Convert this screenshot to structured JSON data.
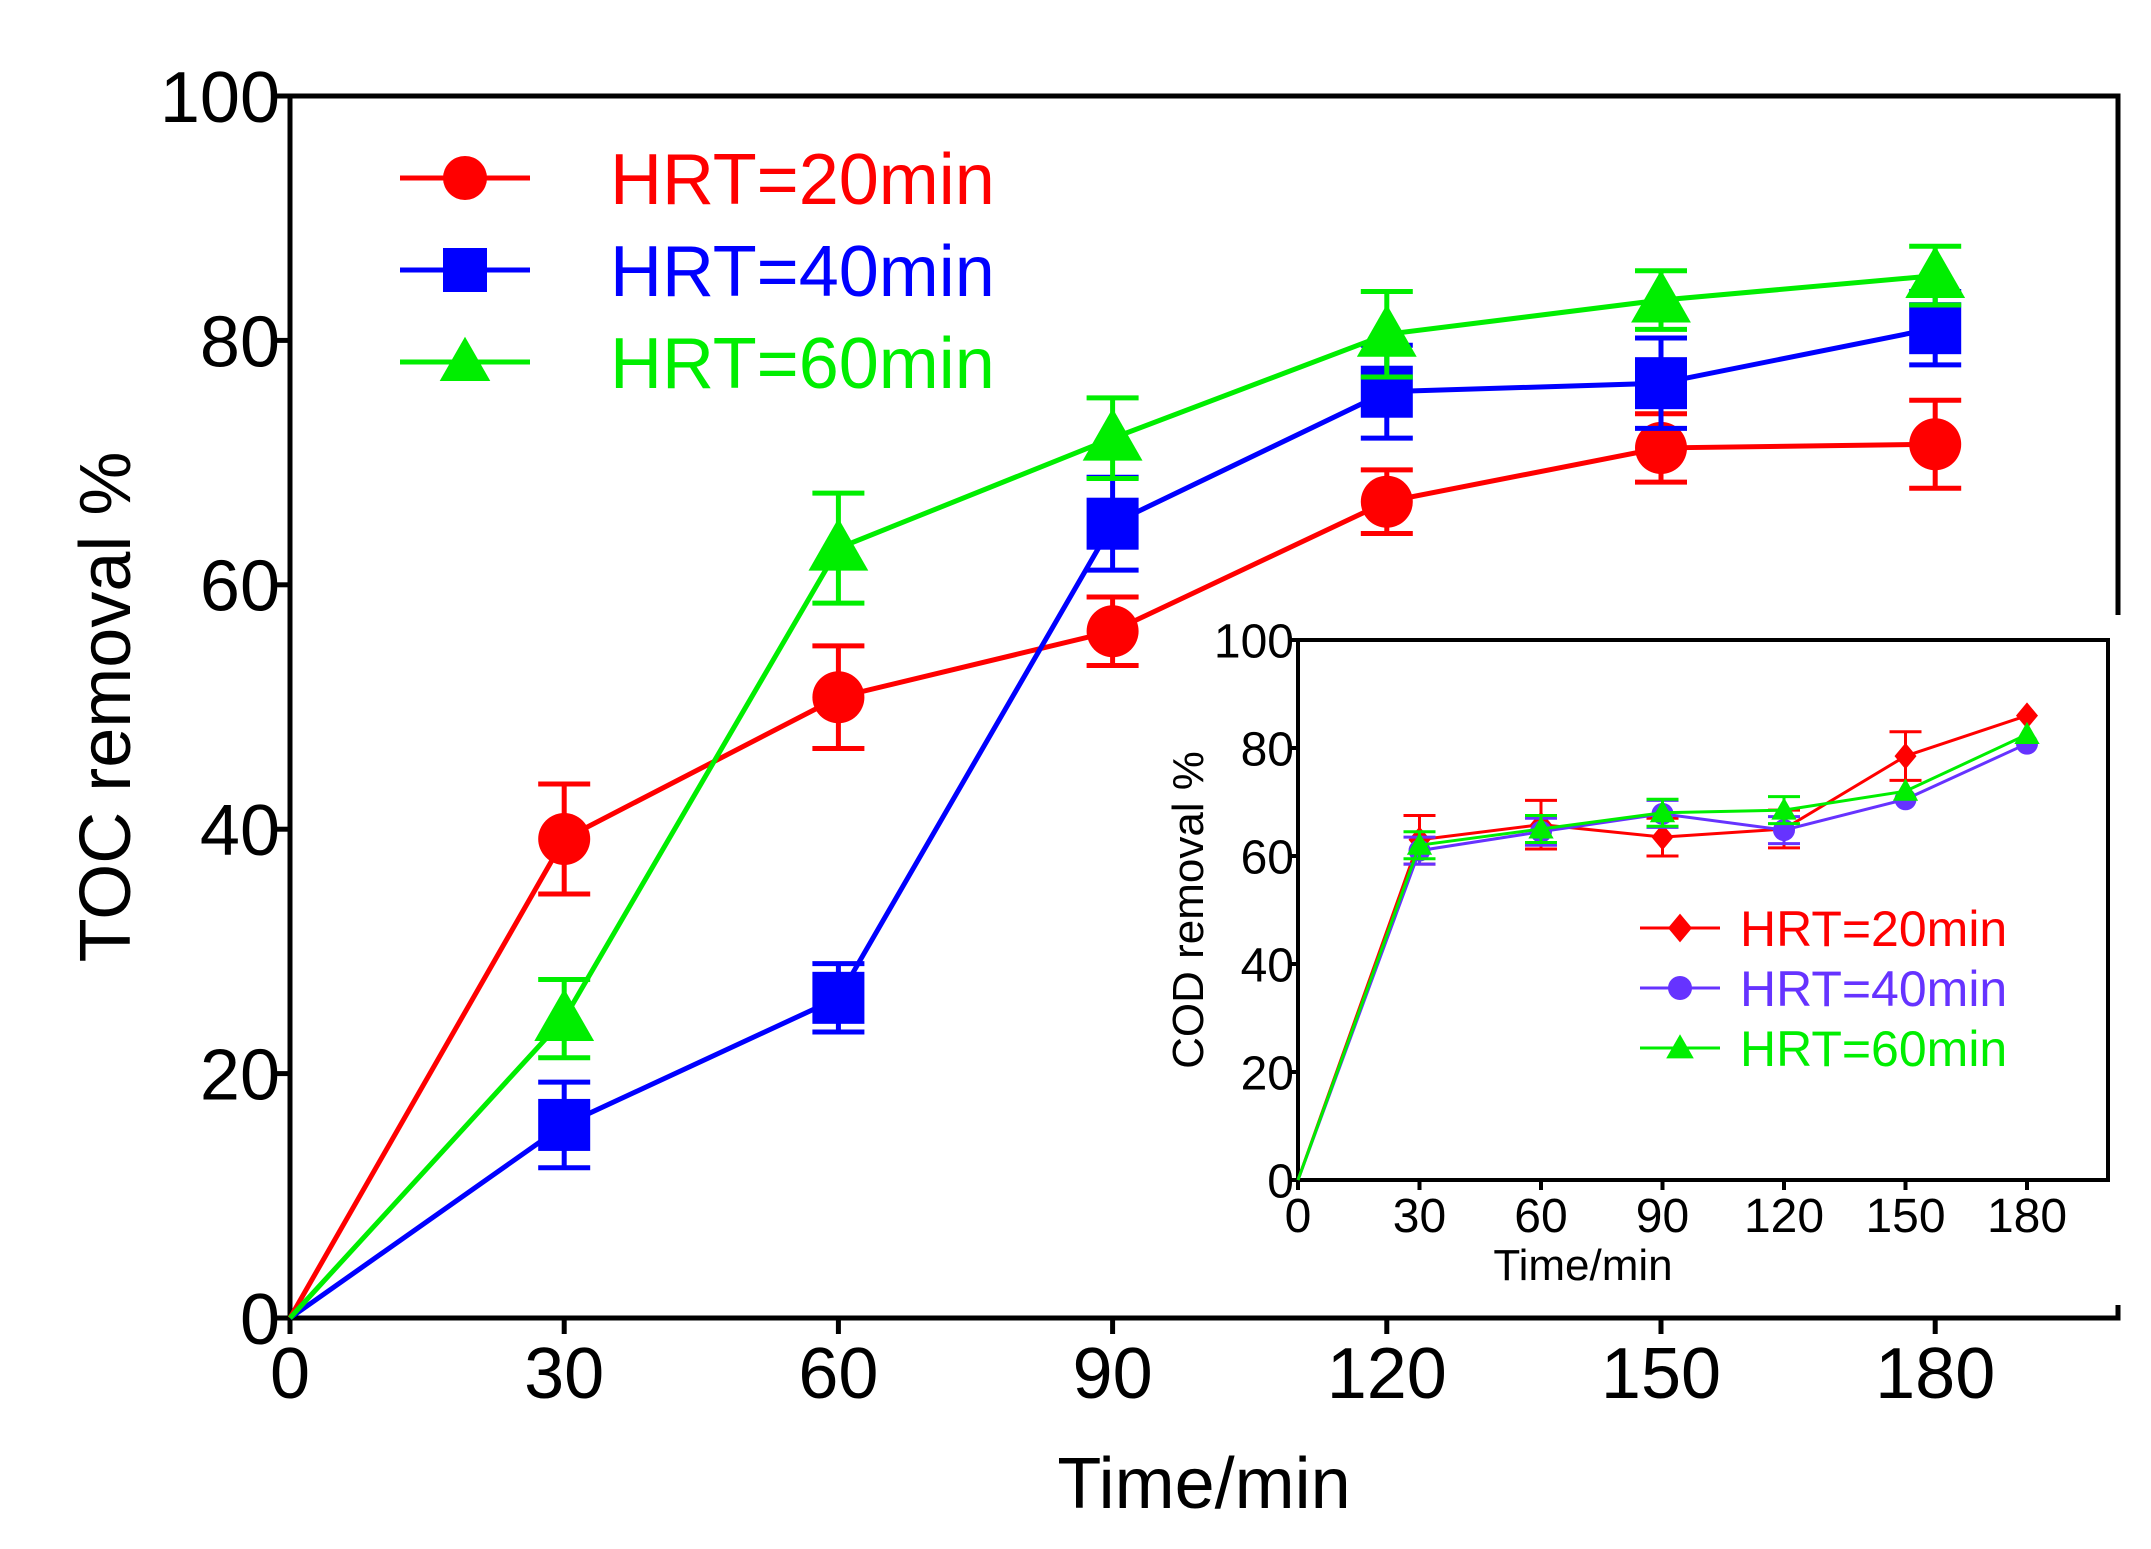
{
  "chart_data": [
    {
      "type": "line",
      "role": "main",
      "xlabel": "Time/min",
      "ylabel": "TOC removal %",
      "xlim": [
        0,
        200
      ],
      "ylim": [
        0,
        100
      ],
      "x_ticks": [
        0,
        30,
        60,
        90,
        120,
        150,
        180
      ],
      "y_ticks": [
        0,
        20,
        40,
        60,
        80,
        100
      ],
      "x": [
        0,
        30,
        60,
        90,
        120,
        150,
        180
      ],
      "legend_position": "top-left",
      "grid": false,
      "series": [
        {
          "name": "HRT=20min",
          "color": "#ff0000",
          "marker": "circle",
          "values": [
            0,
            39.2,
            50.8,
            56.2,
            66.8,
            71.2,
            71.5
          ],
          "errors": [
            0,
            4.5,
            4.2,
            2.8,
            2.6,
            2.8,
            3.6
          ]
        },
        {
          "name": "HRT=40min",
          "color": "#0000ff",
          "marker": "square",
          "values": [
            0,
            15.8,
            26.2,
            65.0,
            75.8,
            76.5,
            81.0
          ],
          "errors": [
            0,
            3.5,
            2.8,
            3.8,
            3.8,
            3.7,
            3.0
          ]
        },
        {
          "name": "HRT=60min",
          "color": "#00ee00",
          "marker": "triangle",
          "values": [
            0,
            24.5,
            63.0,
            72.0,
            80.5,
            83.3,
            85.3
          ],
          "errors": [
            0,
            3.2,
            4.5,
            3.3,
            3.5,
            2.4,
            2.4
          ]
        }
      ]
    },
    {
      "type": "line",
      "role": "inset",
      "xlabel": "Time/min",
      "ylabel": "COD removal %",
      "xlim": [
        0,
        200
      ],
      "ylim": [
        0,
        100
      ],
      "x_ticks": [
        0,
        30,
        60,
        90,
        120,
        150,
        180
      ],
      "y_ticks": [
        0,
        20,
        40,
        60,
        80,
        100
      ],
      "x": [
        0,
        30,
        60,
        90,
        120,
        150,
        180
      ],
      "legend_position": "bottom-right",
      "grid": false,
      "series": [
        {
          "name": "HRT=20min",
          "color": "#ff0000",
          "marker": "diamond",
          "values": [
            0,
            63.0,
            65.8,
            63.5,
            65.0,
            78.5,
            86.0
          ],
          "errors": [
            0,
            4.5,
            4.5,
            3.5,
            3.5,
            4.5,
            0
          ]
        },
        {
          "name": "HRT=40min",
          "color": "#6633ff",
          "marker": "circle",
          "values": [
            0,
            61.0,
            64.5,
            67.8,
            64.8,
            70.5,
            80.8
          ],
          "errors": [
            0,
            2.5,
            2.5,
            2.5,
            2.5,
            0,
            0
          ]
        },
        {
          "name": "HRT=60min",
          "color": "#00ee00",
          "marker": "triangle",
          "values": [
            0,
            62.0,
            65.0,
            68.0,
            68.5,
            72.0,
            82.5
          ],
          "errors": [
            0,
            2.5,
            2.5,
            2.5,
            2.5,
            0,
            0
          ]
        }
      ]
    }
  ]
}
